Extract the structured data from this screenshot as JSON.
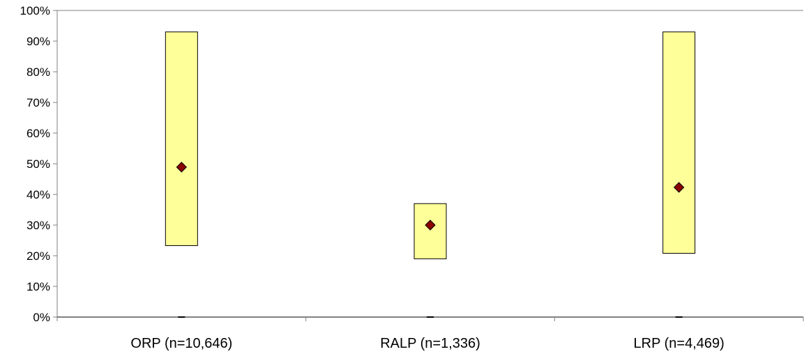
{
  "chart_data": {
    "type": "range",
    "title": "",
    "xlabel": "",
    "ylabel": "",
    "ylim": [
      0,
      100
    ],
    "y_ticks": [
      0,
      10,
      20,
      30,
      40,
      50,
      60,
      70,
      80,
      90,
      100
    ],
    "y_tick_labels": [
      "0%",
      "10%",
      "20%",
      "30%",
      "40%",
      "50%",
      "60%",
      "70%",
      "80%",
      "90%",
      "100%"
    ],
    "grid": false,
    "legend": "none",
    "colors": {
      "box_fill": "#ffff99",
      "box_stroke": "#000000",
      "marker": "#8b0000",
      "axis": "#808080"
    },
    "categories": [
      "ORP (n=10,646)",
      "RALP (n=1,336)",
      "LRP (n=4,469)"
    ],
    "series": [
      {
        "low": 23.3,
        "high": 93.0,
        "point": 48.9
      },
      {
        "low": 19.0,
        "high": 37.0,
        "point": 30.0
      },
      {
        "low": 20.8,
        "high": 93.0,
        "point": 42.3
      }
    ]
  }
}
